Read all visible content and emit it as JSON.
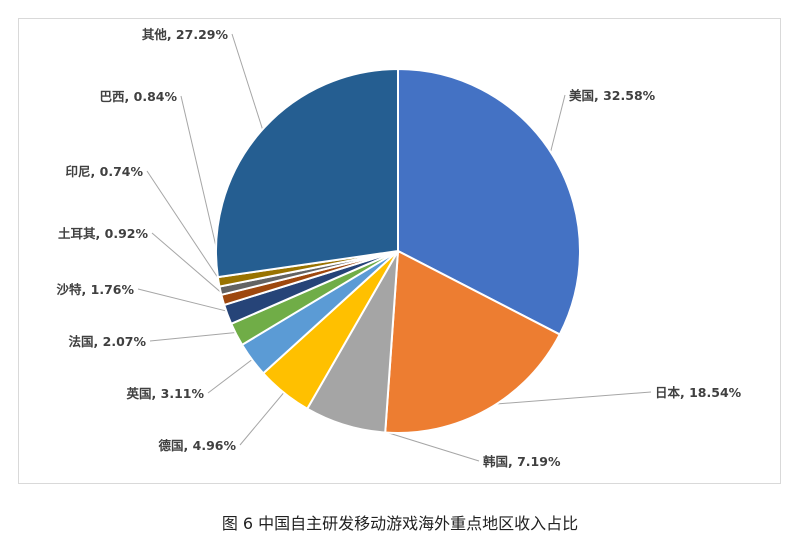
{
  "caption": "图 6 中国自主研发移动游戏海外重点地区收入占比",
  "chart_data": {
    "type": "pie",
    "unit": "%",
    "start_angle_deg": 0,
    "direction": "clockwise",
    "slices": [
      {
        "name": "美国",
        "value": 32.58,
        "label": "美国, 32.58%",
        "color": "#4472C4"
      },
      {
        "name": "日本",
        "value": 18.54,
        "label": "日本, 18.54%",
        "color": "#ED7D31"
      },
      {
        "name": "韩国",
        "value": 7.19,
        "label": "韩国, 7.19%",
        "color": "#A5A5A5"
      },
      {
        "name": "德国",
        "value": 4.96,
        "label": "德国, 4.96%",
        "color": "#FFC000"
      },
      {
        "name": "英国",
        "value": 3.11,
        "label": "英国, 3.11%",
        "color": "#5B9BD5"
      },
      {
        "name": "法国",
        "value": 2.07,
        "label": "法国, 2.07%",
        "color": "#70AD47"
      },
      {
        "name": "沙特",
        "value": 1.76,
        "label": "沙特, 1.76%",
        "color": "#264478"
      },
      {
        "name": "土耳其",
        "value": 0.92,
        "label": "土耳其, 0.92%",
        "color": "#9E480E"
      },
      {
        "name": "印尼",
        "value": 0.74,
        "label": "印尼, 0.74%",
        "color": "#636363"
      },
      {
        "name": "巴西",
        "value": 0.84,
        "label": "巴西, 0.84%",
        "color": "#997300"
      },
      {
        "name": "其他",
        "value": 27.29,
        "label": "其他, 27.29%",
        "color": "#255E91"
      }
    ]
  }
}
